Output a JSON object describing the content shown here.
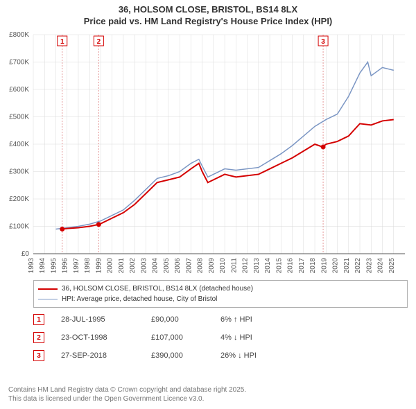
{
  "title_line1": "36, HOLSOM CLOSE, BRISTOL, BS14 8LX",
  "title_line2": "Price paid vs. HM Land Registry's House Price Index (HPI)",
  "chart": {
    "type": "line",
    "background_color": "#ffffff",
    "plot_grid_color": "#d9d9d9",
    "axis_color": "#555555",
    "xlim": [
      1993,
      2026
    ],
    "ylim": [
      0,
      800000
    ],
    "ytick_step": 100000,
    "xtick_step": 1,
    "ylabel_format": "pound_k",
    "series": [
      {
        "name": "36, HOLSOM CLOSE, BRISTOL, BS14 8LX (detached house)",
        "color": "#d40000",
        "width": 2,
        "data": [
          [
            1995.5,
            90000
          ],
          [
            1996,
            92000
          ],
          [
            1997,
            95000
          ],
          [
            1998,
            100000
          ],
          [
            1998.8,
            107000
          ],
          [
            1999,
            110000
          ],
          [
            2000,
            130000
          ],
          [
            2001,
            150000
          ],
          [
            2002,
            180000
          ],
          [
            2003,
            220000
          ],
          [
            2004,
            260000
          ],
          [
            2005,
            270000
          ],
          [
            2006,
            280000
          ],
          [
            2007,
            310000
          ],
          [
            2007.7,
            330000
          ],
          [
            2008,
            300000
          ],
          [
            2008.5,
            260000
          ],
          [
            2009,
            270000
          ],
          [
            2010,
            290000
          ],
          [
            2011,
            280000
          ],
          [
            2012,
            285000
          ],
          [
            2013,
            290000
          ],
          [
            2014,
            310000
          ],
          [
            2015,
            330000
          ],
          [
            2016,
            350000
          ],
          [
            2017,
            375000
          ],
          [
            2018,
            400000
          ],
          [
            2018.7,
            390000
          ],
          [
            2019,
            400000
          ],
          [
            2020,
            410000
          ],
          [
            2021,
            430000
          ],
          [
            2022,
            475000
          ],
          [
            2023,
            470000
          ],
          [
            2024,
            485000
          ],
          [
            2025,
            490000
          ]
        ]
      },
      {
        "name": "HPI: Average price, detached house, City of Bristol",
        "color": "#7b96c4",
        "width": 1.5,
        "data": [
          [
            1995,
            90000
          ],
          [
            1996,
            95000
          ],
          [
            1997,
            100000
          ],
          [
            1998,
            108000
          ],
          [
            1999,
            120000
          ],
          [
            2000,
            140000
          ],
          [
            2001,
            160000
          ],
          [
            2002,
            195000
          ],
          [
            2003,
            235000
          ],
          [
            2004,
            275000
          ],
          [
            2005,
            285000
          ],
          [
            2006,
            300000
          ],
          [
            2007,
            330000
          ],
          [
            2007.7,
            345000
          ],
          [
            2008,
            320000
          ],
          [
            2008.5,
            280000
          ],
          [
            2009,
            290000
          ],
          [
            2010,
            310000
          ],
          [
            2011,
            305000
          ],
          [
            2012,
            310000
          ],
          [
            2013,
            315000
          ],
          [
            2014,
            340000
          ],
          [
            2015,
            365000
          ],
          [
            2016,
            395000
          ],
          [
            2017,
            430000
          ],
          [
            2018,
            465000
          ],
          [
            2019,
            490000
          ],
          [
            2020,
            510000
          ],
          [
            2021,
            575000
          ],
          [
            2022,
            660000
          ],
          [
            2022.7,
            700000
          ],
          [
            2023,
            650000
          ],
          [
            2024,
            680000
          ],
          [
            2025,
            670000
          ]
        ]
      }
    ],
    "markers": [
      {
        "label": "1",
        "x": 1995.57,
        "y": 90000,
        "color": "#d40000",
        "line_color": "#e59999"
      },
      {
        "label": "2",
        "x": 1998.81,
        "y": 107000,
        "color": "#d40000",
        "line_color": "#e59999"
      },
      {
        "label": "3",
        "x": 2018.74,
        "y": 390000,
        "color": "#d40000",
        "line_color": "#e59999"
      }
    ]
  },
  "legend": [
    {
      "color": "#d40000",
      "width": 2,
      "label": "36, HOLSOM CLOSE, BRISTOL, BS14 8LX (detached house)"
    },
    {
      "color": "#7b96c4",
      "width": 1.5,
      "label": "HPI: Average price, detached house, City of Bristol"
    }
  ],
  "transactions": [
    {
      "n": "1",
      "date": "28-JUL-1995",
      "price": "£90,000",
      "diff": "6% ↑ HPI",
      "color": "#d40000"
    },
    {
      "n": "2",
      "date": "23-OCT-1998",
      "price": "£107,000",
      "diff": "4% ↓ HPI",
      "color": "#d40000"
    },
    {
      "n": "3",
      "date": "27-SEP-2018",
      "price": "£390,000",
      "diff": "26% ↓ HPI",
      "color": "#d40000"
    }
  ],
  "footer_line1": "Contains HM Land Registry data © Crown copyright and database right 2025.",
  "footer_line2": "This data is licensed under the Open Government Licence v3.0."
}
